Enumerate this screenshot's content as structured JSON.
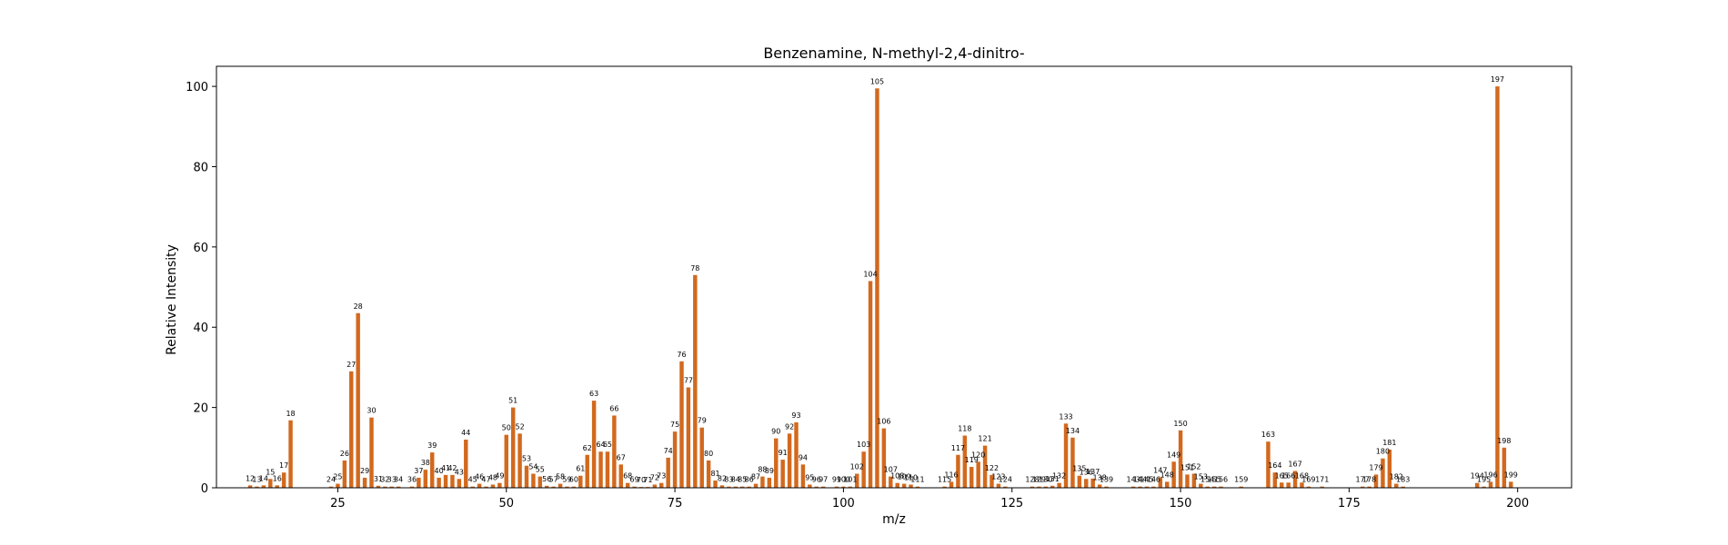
{
  "chart_data": {
    "type": "bar",
    "title": "Benzenamine, N-methyl-2,4-dinitro-",
    "xlabel": "m/z",
    "ylabel": "Relative Intensity",
    "xlim": [
      7,
      208
    ],
    "ylim": [
      0,
      105
    ],
    "xticks": [
      25,
      50,
      75,
      100,
      125,
      150,
      175,
      200
    ],
    "yticks": [
      0,
      20,
      40,
      60,
      80,
      100
    ],
    "bar_color": "#d2691e",
    "grid": false,
    "peaks": [
      {
        "mz": 12,
        "intensity": 0.6
      },
      {
        "mz": 13,
        "intensity": 0.3
      },
      {
        "mz": 14,
        "intensity": 0.6
      },
      {
        "mz": 15,
        "intensity": 2.2
      },
      {
        "mz": 16,
        "intensity": 0.6
      },
      {
        "mz": 17,
        "intensity": 3.8
      },
      {
        "mz": 18,
        "intensity": 16.8
      },
      {
        "mz": 24,
        "intensity": 0.3
      },
      {
        "mz": 25,
        "intensity": 1.0
      },
      {
        "mz": 26,
        "intensity": 6.8
      },
      {
        "mz": 27,
        "intensity": 29.0
      },
      {
        "mz": 28,
        "intensity": 43.5
      },
      {
        "mz": 29,
        "intensity": 2.5
      },
      {
        "mz": 30,
        "intensity": 17.5
      },
      {
        "mz": 31,
        "intensity": 0.5
      },
      {
        "mz": 32,
        "intensity": 0.3
      },
      {
        "mz": 33,
        "intensity": 0.3
      },
      {
        "mz": 34,
        "intensity": 0.3
      },
      {
        "mz": 36,
        "intensity": 0.3
      },
      {
        "mz": 37,
        "intensity": 2.5
      },
      {
        "mz": 38,
        "intensity": 4.5
      },
      {
        "mz": 39,
        "intensity": 8.8
      },
      {
        "mz": 40,
        "intensity": 2.5
      },
      {
        "mz": 41,
        "intensity": 3.2
      },
      {
        "mz": 42,
        "intensity": 3.2
      },
      {
        "mz": 43,
        "intensity": 2.2
      },
      {
        "mz": 44,
        "intensity": 12.0
      },
      {
        "mz": 45,
        "intensity": 0.3
      },
      {
        "mz": 46,
        "intensity": 1.0
      },
      {
        "mz": 47,
        "intensity": 0.3
      },
      {
        "mz": 48,
        "intensity": 0.8
      },
      {
        "mz": 49,
        "intensity": 1.2
      },
      {
        "mz": 50,
        "intensity": 13.2
      },
      {
        "mz": 51,
        "intensity": 20.0
      },
      {
        "mz": 52,
        "intensity": 13.5
      },
      {
        "mz": 53,
        "intensity": 5.5
      },
      {
        "mz": 54,
        "intensity": 3.5
      },
      {
        "mz": 55,
        "intensity": 2.8
      },
      {
        "mz": 56,
        "intensity": 0.5
      },
      {
        "mz": 57,
        "intensity": 0.3
      },
      {
        "mz": 58,
        "intensity": 1.0
      },
      {
        "mz": 59,
        "intensity": 0.3
      },
      {
        "mz": 60,
        "intensity": 0.3
      },
      {
        "mz": 61,
        "intensity": 3.0
      },
      {
        "mz": 62,
        "intensity": 8.2
      },
      {
        "mz": 63,
        "intensity": 21.7
      },
      {
        "mz": 64,
        "intensity": 9.0
      },
      {
        "mz": 65,
        "intensity": 9.0
      },
      {
        "mz": 66,
        "intensity": 18.0
      },
      {
        "mz": 67,
        "intensity": 5.8
      },
      {
        "mz": 68,
        "intensity": 1.2
      },
      {
        "mz": 69,
        "intensity": 0.3
      },
      {
        "mz": 70,
        "intensity": 0.2
      },
      {
        "mz": 71,
        "intensity": 0.2
      },
      {
        "mz": 72,
        "intensity": 0.8
      },
      {
        "mz": 73,
        "intensity": 1.2
      },
      {
        "mz": 74,
        "intensity": 7.5
      },
      {
        "mz": 75,
        "intensity": 14.0
      },
      {
        "mz": 76,
        "intensity": 31.5
      },
      {
        "mz": 77,
        "intensity": 25.0
      },
      {
        "mz": 78,
        "intensity": 53.0
      },
      {
        "mz": 79,
        "intensity": 15.0
      },
      {
        "mz": 80,
        "intensity": 6.8
      },
      {
        "mz": 81,
        "intensity": 1.8
      },
      {
        "mz": 82,
        "intensity": 0.6
      },
      {
        "mz": 83,
        "intensity": 0.3
      },
      {
        "mz": 84,
        "intensity": 0.3
      },
      {
        "mz": 85,
        "intensity": 0.3
      },
      {
        "mz": 86,
        "intensity": 0.3
      },
      {
        "mz": 87,
        "intensity": 1.0
      },
      {
        "mz": 88,
        "intensity": 2.8
      },
      {
        "mz": 89,
        "intensity": 2.5
      },
      {
        "mz": 90,
        "intensity": 12.3
      },
      {
        "mz": 91,
        "intensity": 7.0
      },
      {
        "mz": 92,
        "intensity": 13.5
      },
      {
        "mz": 93,
        "intensity": 16.3
      },
      {
        "mz": 94,
        "intensity": 5.8
      },
      {
        "mz": 95,
        "intensity": 0.8
      },
      {
        "mz": 96,
        "intensity": 0.3
      },
      {
        "mz": 97,
        "intensity": 0.3
      },
      {
        "mz": 99,
        "intensity": 0.3
      },
      {
        "mz": 100,
        "intensity": 0.3
      },
      {
        "mz": 101,
        "intensity": 0.3
      },
      {
        "mz": 102,
        "intensity": 3.5
      },
      {
        "mz": 103,
        "intensity": 9.0
      },
      {
        "mz": 104,
        "intensity": 51.5
      },
      {
        "mz": 105,
        "intensity": 99.5
      },
      {
        "mz": 106,
        "intensity": 14.8
      },
      {
        "mz": 107,
        "intensity": 2.8
      },
      {
        "mz": 108,
        "intensity": 1.2
      },
      {
        "mz": 109,
        "intensity": 1.0
      },
      {
        "mz": 110,
        "intensity": 0.8
      },
      {
        "mz": 111,
        "intensity": 0.3
      },
      {
        "mz": 115,
        "intensity": 0.3
      },
      {
        "mz": 116,
        "intensity": 1.5
      },
      {
        "mz": 117,
        "intensity": 8.2
      },
      {
        "mz": 118,
        "intensity": 13.0
      },
      {
        "mz": 119,
        "intensity": 5.2
      },
      {
        "mz": 120,
        "intensity": 6.5
      },
      {
        "mz": 121,
        "intensity": 10.5
      },
      {
        "mz": 122,
        "intensity": 3.2
      },
      {
        "mz": 123,
        "intensity": 1.0
      },
      {
        "mz": 124,
        "intensity": 0.3
      },
      {
        "mz": 128,
        "intensity": 0.3
      },
      {
        "mz": 129,
        "intensity": 0.3
      },
      {
        "mz": 130,
        "intensity": 0.3
      },
      {
        "mz": 131,
        "intensity": 0.5
      },
      {
        "mz": 132,
        "intensity": 1.2
      },
      {
        "mz": 133,
        "intensity": 16.0
      },
      {
        "mz": 134,
        "intensity": 12.5
      },
      {
        "mz": 135,
        "intensity": 3.0
      },
      {
        "mz": 136,
        "intensity": 2.2
      },
      {
        "mz": 137,
        "intensity": 2.3
      },
      {
        "mz": 138,
        "intensity": 0.8
      },
      {
        "mz": 139,
        "intensity": 0.3
      },
      {
        "mz": 143,
        "intensity": 0.3
      },
      {
        "mz": 144,
        "intensity": 0.3
      },
      {
        "mz": 145,
        "intensity": 0.3
      },
      {
        "mz": 146,
        "intensity": 0.3
      },
      {
        "mz": 147,
        "intensity": 2.6
      },
      {
        "mz": 148,
        "intensity": 1.5
      },
      {
        "mz": 149,
        "intensity": 6.5
      },
      {
        "mz": 150,
        "intensity": 14.3
      },
      {
        "mz": 151,
        "intensity": 3.3
      },
      {
        "mz": 152,
        "intensity": 3.5
      },
      {
        "mz": 153,
        "intensity": 1.0
      },
      {
        "mz": 154,
        "intensity": 0.3
      },
      {
        "mz": 155,
        "intensity": 0.3
      },
      {
        "mz": 156,
        "intensity": 0.3
      },
      {
        "mz": 159,
        "intensity": 0.3
      },
      {
        "mz": 163,
        "intensity": 11.5
      },
      {
        "mz": 164,
        "intensity": 3.8
      },
      {
        "mz": 165,
        "intensity": 1.3
      },
      {
        "mz": 166,
        "intensity": 1.3
      },
      {
        "mz": 167,
        "intensity": 4.2
      },
      {
        "mz": 168,
        "intensity": 1.3
      },
      {
        "mz": 169,
        "intensity": 0.3
      },
      {
        "mz": 171,
        "intensity": 0.3
      },
      {
        "mz": 177,
        "intensity": 0.3
      },
      {
        "mz": 178,
        "intensity": 0.3
      },
      {
        "mz": 179,
        "intensity": 3.3
      },
      {
        "mz": 180,
        "intensity": 7.3
      },
      {
        "mz": 181,
        "intensity": 9.5
      },
      {
        "mz": 182,
        "intensity": 1.0
      },
      {
        "mz": 183,
        "intensity": 0.3
      },
      {
        "mz": 194,
        "intensity": 1.2
      },
      {
        "mz": 195,
        "intensity": 0.3
      },
      {
        "mz": 196,
        "intensity": 1.5
      },
      {
        "mz": 197,
        "intensity": 100.0
      },
      {
        "mz": 198,
        "intensity": 10.0
      },
      {
        "mz": 199,
        "intensity": 1.5
      }
    ]
  }
}
